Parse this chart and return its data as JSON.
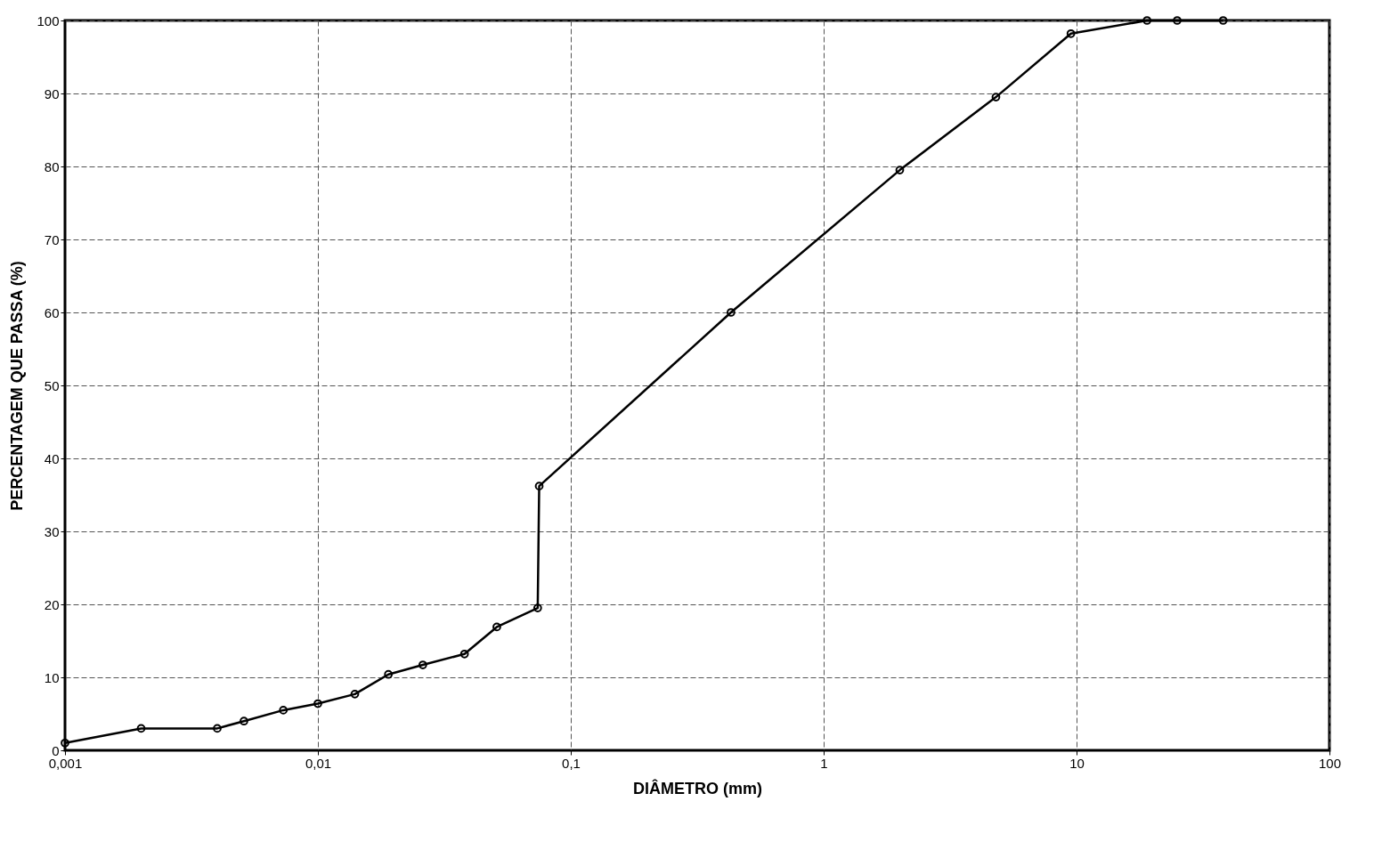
{
  "chart_data": {
    "type": "line",
    "xlabel": "DIÂMETRO (mm)",
    "ylabel": "PERCENTAGEM QUE PASSA (%)",
    "log": "x",
    "grid": true,
    "marker": "circle",
    "line_style": "solid",
    "xlim": [
      0.001,
      100
    ],
    "xticks": [
      {
        "value": 0.001,
        "label": "0,001"
      },
      {
        "value": 0.01,
        "label": "0,01"
      },
      {
        "value": 0.1,
        "label": "0,1"
      },
      1,
      10,
      100
    ],
    "ylim": [
      0,
      100
    ],
    "yticks": [
      0,
      10,
      20,
      30,
      40,
      50,
      60,
      70,
      80,
      90,
      100
    ],
    "series": [
      {
        "color": "#000000",
        "x": [
          0.001,
          0.002,
          0.004,
          0.0051,
          0.0073,
          0.01,
          0.014,
          0.019,
          0.026,
          0.038,
          0.051,
          0.074,
          0.075,
          0.43,
          2.0,
          4.8,
          9.5,
          19,
          25,
          38
        ],
        "values": [
          1,
          3,
          3,
          4,
          5.5,
          6.4,
          7.7,
          10.4,
          11.7,
          13.2,
          16.9,
          19.5,
          36.2,
          60,
          79.5,
          89.5,
          98.2,
          100,
          100,
          100
        ]
      }
    ]
  }
}
